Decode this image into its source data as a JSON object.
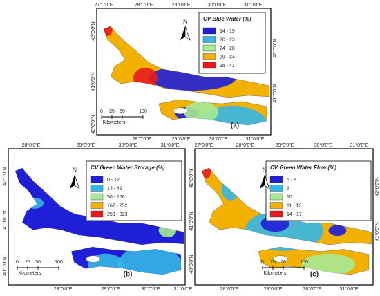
{
  "panels": [
    {
      "id": "a",
      "title": "CV Blue Water (%)",
      "label": "(a)",
      "north": "N",
      "scale_unit": "Kilometers",
      "scale": [
        0,
        25,
        50,
        100
      ],
      "legend": [
        {
          "label": "14 - 19",
          "color": "#1f1fd8"
        },
        {
          "label": "20 - 23",
          "color": "#35b6e8"
        },
        {
          "label": "24 - 28",
          "color": "#a6ea95"
        },
        {
          "label": "29 - 34",
          "color": "#f2b000"
        },
        {
          "label": "35 - 41",
          "color": "#e61c1c"
        }
      ],
      "lon_top": [
        "27°0'0\"E",
        "28°0'0\"E",
        "29°0'0\"E",
        "30°0'0\"E",
        "31°0'0\"E"
      ],
      "lon_bottom": [
        "28°0'0\"E",
        "29°0'0\"E",
        "30°0'0\"E",
        "31°0'0\"E"
      ],
      "lat_left": [
        "42°0'0\"N",
        "41°0'0\"N",
        "40°0'0\"N"
      ],
      "lat_right": [
        "42°0'0\"N",
        "41°0'0\"N"
      ]
    },
    {
      "id": "b",
      "title": "CV Green Water Storage (%)",
      "label": "(b)",
      "north": "N",
      "scale_unit": "Kilometers",
      "scale": [
        0,
        25,
        50,
        100
      ],
      "legend": [
        {
          "label": "0 - 12",
          "color": "#1f1fd8"
        },
        {
          "label": "13 - 49",
          "color": "#35b6e8"
        },
        {
          "label": "50 - 166",
          "color": "#a6ea95"
        },
        {
          "label": "167 - 252",
          "color": "#f2b000"
        },
        {
          "label": "253 - 323",
          "color": "#e61c1c"
        }
      ],
      "lon_top": [
        "28°0'0\"E",
        "29°0'0\"E",
        "30°0'0\"E",
        "31°0'0\"E"
      ],
      "lon_bottom": [
        "28°0'0\"E",
        "29°0'0\"E",
        "30°0'0\"E",
        "31°0'0\"E"
      ],
      "lat_left": [
        "42°0'0\"N",
        "41°0'0\"N",
        "40°0'0\"N"
      ],
      "lat_right": []
    },
    {
      "id": "c",
      "title": "CV Green Water Flow (%)",
      "label": "(c)",
      "north": "N",
      "scale_unit": "Kilometers",
      "scale": [
        0,
        25,
        50,
        100
      ],
      "legend": [
        {
          "label": "6 - 8",
          "color": "#1f1fd8"
        },
        {
          "label": "9",
          "color": "#35b6e8"
        },
        {
          "label": "10",
          "color": "#a6ea95"
        },
        {
          "label": "11 - 13",
          "color": "#f2b000"
        },
        {
          "label": "14 - 17",
          "color": "#e61c1c"
        }
      ],
      "lon_top": [
        "27°0'0\"E",
        "28°0'0\"E",
        "29°0'0\"E",
        "30°0'0\"E",
        "31°0'0\"E"
      ],
      "lon_bottom": [
        "28°0'0\"E",
        "29°0'0\"E",
        "30°0'0\"E",
        "31°0'0\"E"
      ],
      "lat_left": [
        "42°0'0\"N",
        "41°0'0\"N",
        "40°0'0\"N"
      ],
      "lat_right": [
        "42°0'0\"N",
        "41°0'0\"N"
      ]
    }
  ]
}
